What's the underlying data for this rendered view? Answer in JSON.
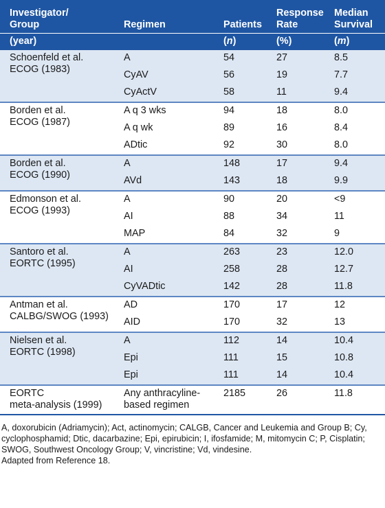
{
  "header": {
    "investigator": [
      "Investigator/",
      "Group"
    ],
    "regimen": "Regimen",
    "patients": "Patients",
    "response": [
      "Response",
      "Rate"
    ],
    "median": [
      "Median",
      "Survival"
    ],
    "units": [
      "(year)",
      "",
      "(n)",
      "(%)",
      "(m)"
    ]
  },
  "groups": [
    {
      "investigator": [
        "Schoenfeld et al.",
        "ECOG (1983)"
      ],
      "rows": [
        [
          "A",
          "54",
          "27",
          "8.5"
        ],
        [
          "CyAV",
          "56",
          "19",
          "7.7"
        ],
        [
          "CyActV",
          "58",
          "11",
          "9.4"
        ]
      ]
    },
    {
      "investigator": [
        "Borden et al.",
        "ECOG (1987)"
      ],
      "rows": [
        [
          "A q 3 wks",
          "94",
          "18",
          "8.0"
        ],
        [
          "A q wk",
          "89",
          "16",
          "8.4"
        ],
        [
          "ADtic",
          "92",
          "30",
          "8.0"
        ]
      ]
    },
    {
      "investigator": [
        "Borden et al.",
        "ECOG (1990)"
      ],
      "rows": [
        [
          "A",
          "148",
          "17",
          "9.4"
        ],
        [
          "AVd",
          "143",
          "18",
          "9.9"
        ]
      ]
    },
    {
      "investigator": [
        "Edmonson et al.",
        "ECOG (1993)"
      ],
      "rows": [
        [
          "A",
          "90",
          "20",
          "<9"
        ],
        [
          "AI",
          "88",
          "34",
          "11"
        ],
        [
          "MAP",
          "84",
          "32",
          "9"
        ]
      ]
    },
    {
      "investigator": [
        "Santoro et al.",
        "EORTC (1995)"
      ],
      "rows": [
        [
          "A",
          "263",
          "23",
          "12.0"
        ],
        [
          "AI",
          "258",
          "28",
          "12.7"
        ],
        [
          "CyVADtic",
          "142",
          "28",
          "11.8"
        ]
      ]
    },
    {
      "investigator": [
        "Antman et al.",
        "CALBG/SWOG (1993)"
      ],
      "rows": [
        [
          "AD",
          "170",
          "17",
          "12"
        ],
        [
          "AID",
          "170",
          "32",
          "13"
        ]
      ]
    },
    {
      "investigator": [
        "Nielsen et al.",
        "EORTC (1998)"
      ],
      "rows": [
        [
          "A",
          "112",
          "14",
          "10.4"
        ],
        [
          "Epi",
          "111",
          "15",
          "10.8"
        ],
        [
          "Epi",
          "111",
          "14",
          "10.4"
        ]
      ]
    },
    {
      "investigator": [
        "EORTC",
        "meta-analysis (1999)"
      ],
      "regimen_lines": [
        "Any anthracyline-",
        "based regimen"
      ],
      "rows": [
        [
          "",
          "2185",
          "26",
          "11.8"
        ]
      ]
    }
  ],
  "footnote": {
    "abbreviations": "A, doxorubicin (Adriamycin); Act, actinomycin; CALGB, Cancer and Leukemia and Group B; Cy, cyclophosphamid; Dtic, dacarbazine; Epi, epirubicin; I, ifosfamide; M, mitomycin C; P, Cisplatin; SWOG, Southwest Oncology Group; V, vincristine; Vd, vindesine.",
    "source": "Adapted from Reference 18."
  }
}
